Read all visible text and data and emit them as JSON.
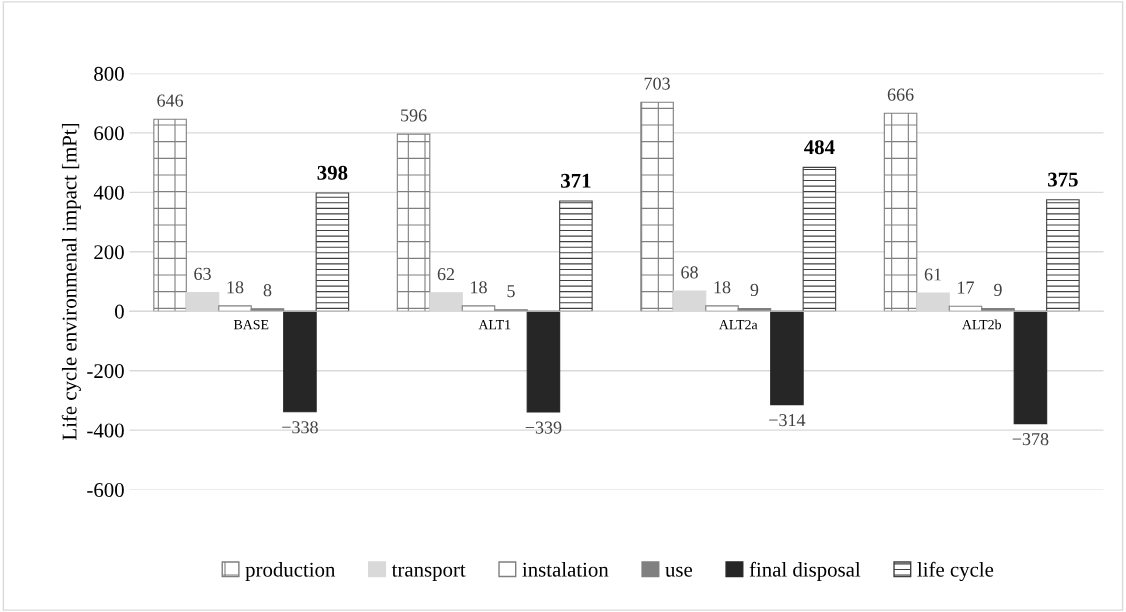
{
  "chart_data": {
    "type": "bar",
    "ylabel": "Life cycle environmenal impact [mPt]",
    "categories": [
      "BASE",
      "ALT1",
      "ALT2a",
      "ALT2b"
    ],
    "series": [
      {
        "name": "production",
        "color": "#7f7f7f",
        "values": [
          646,
          596,
          703,
          666
        ],
        "value_labels": [
          "646",
          "596",
          "703",
          "666"
        ]
      },
      {
        "name": "transport",
        "color": "#d9d9d9",
        "values": [
          63,
          62,
          68,
          61
        ],
        "value_labels": [
          "63",
          "62",
          "68",
          "61"
        ]
      },
      {
        "name": "instalation",
        "color": "#ffffff",
        "values": [
          18,
          18,
          18,
          17
        ],
        "value_labels": [
          "18",
          "18",
          "18",
          "17"
        ]
      },
      {
        "name": "use",
        "color": "#808080",
        "values": [
          8,
          5,
          9,
          9
        ],
        "value_labels": [
          "8",
          "5",
          "9",
          "9"
        ]
      },
      {
        "name": "final disposal",
        "color": "#262626",
        "values": [
          -338,
          -339,
          -314,
          -378
        ],
        "value_labels": [
          "−338",
          "−339",
          "−314",
          "−378"
        ]
      },
      {
        "name": "life cycle",
        "color": "#404040",
        "values": [
          398,
          371,
          484,
          375
        ],
        "value_labels": [
          "398",
          "371",
          "484",
          "375"
        ]
      }
    ],
    "ylim": [
      -600,
      800
    ],
    "yticks": [
      -600,
      -400,
      -200,
      0,
      200,
      400,
      600,
      800
    ],
    "grid": "y",
    "legend": "bottom"
  }
}
